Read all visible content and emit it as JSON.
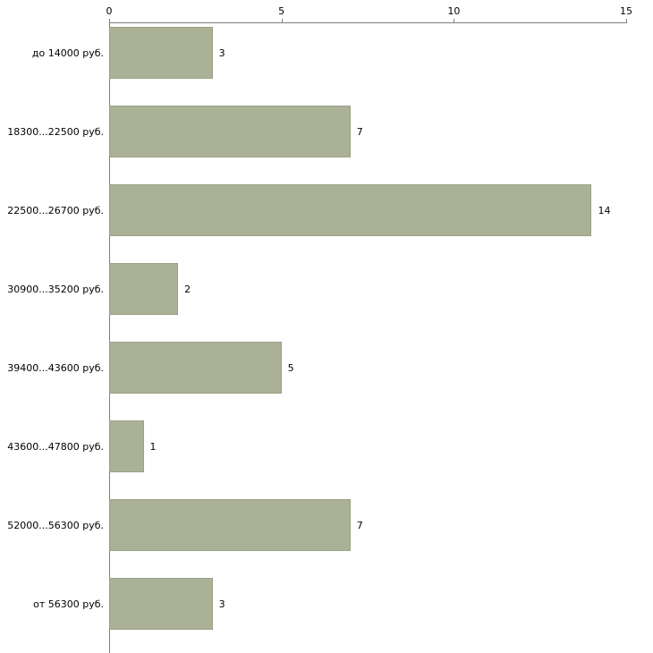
{
  "chart_data": {
    "type": "bar",
    "orientation": "horizontal",
    "title": "",
    "xlabel": "",
    "ylabel": "",
    "categories": [
      "до 14000 руб.",
      "18300...22500 руб.",
      "22500...26700 руб.",
      "30900...35200 руб.",
      "39400...43600 руб.",
      "43600...47800 руб.",
      "52000...56300 руб.",
      "от 56300 руб."
    ],
    "values": [
      3,
      7,
      14,
      2,
      5,
      1,
      7,
      3
    ],
    "value_labels": [
      "3",
      "7",
      "14",
      "2",
      "5",
      "1",
      "7",
      "3"
    ],
    "xlim": [
      0,
      15
    ],
    "x_ticks": [
      0,
      5,
      10,
      15
    ],
    "x_tick_labels": [
      "0",
      "5",
      "10",
      "15"
    ],
    "grid": false,
    "axis_position": "top",
    "legend": "none",
    "colors": {
      "bar_fill": "#abb196",
      "bar_border": "#9aa287",
      "axis_line": "#7f7f7f",
      "text": "#000000",
      "background": "#ffffff"
    }
  }
}
